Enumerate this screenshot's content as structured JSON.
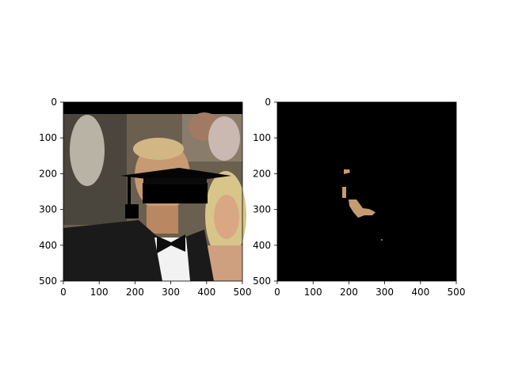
{
  "figure": {
    "background": "#ffffff",
    "panels": [
      {
        "name": "left",
        "content": "photo of man in tuxedo with bow tie, black graduation cap overlay and black bar over eyes; woman with blonde hair at right",
        "x_ticks": [
          "0",
          "100",
          "200",
          "300",
          "400",
          "500"
        ],
        "y_ticks": [
          "0",
          "100",
          "200",
          "300",
          "400",
          "500"
        ]
      },
      {
        "name": "right",
        "content": "mostly black image with small skin-tone region (masked face area)",
        "x_ticks": [
          "0",
          "100",
          "200",
          "300",
          "400",
          "500"
        ],
        "y_ticks": [
          "0",
          "100",
          "200",
          "300",
          "400",
          "500"
        ]
      }
    ]
  },
  "colors": {
    "axes_frame": "#000000",
    "mask_bg": "#000000",
    "skin": "#c89a72",
    "hair_blonde": "#d8c58a",
    "tuxedo": "#1a1a1a",
    "shirt": "#f2f2f2"
  }
}
